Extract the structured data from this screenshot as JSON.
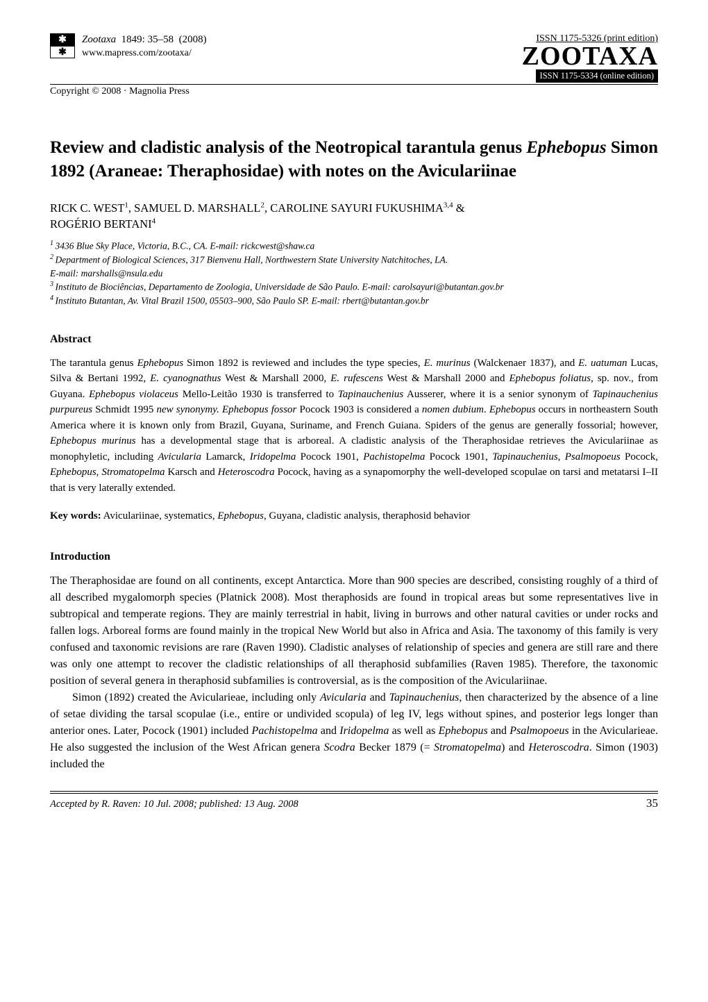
{
  "header": {
    "journal_name": "Zootaxa",
    "issue": "1849",
    "pages": "35–58",
    "year": "(2008)",
    "url": "www.mapress.com/zootaxa/",
    "copyright": "Copyright © 2008  ·  Magnolia Press",
    "issn_print": "ISSN 1175-5326  (print edition)",
    "brand": "ZOOTAXA",
    "issn_online": "ISSN 1175-5334 (online edition)"
  },
  "title": {
    "pre": "Review and cladistic analysis of the Neotropical tarantula genus ",
    "genus": "Ephebopus",
    "post": " Simon 1892 (Araneae: Theraphosidae) with notes on the Aviculariinae"
  },
  "authors": {
    "a1": "RICK C. WEST",
    "a1_sup": "1",
    "a2": "SAMUEL D. MARSHALL",
    "a2_sup": "2",
    "a3": "CAROLINE SAYURI FUKUSHIMA",
    "a3_sup": "3,4",
    "amp": " & ",
    "a4": "ROGÉRIO BERTANI",
    "a4_sup": "4"
  },
  "affiliations": {
    "l1_sup": "1 ",
    "l1": "3436 Blue Sky Place, Victoria, B.C., CA. E-mail: rickcwest@shaw.ca",
    "l2_sup": "2 ",
    "l2": "Department of Biological Sciences, 317 Bienvenu Hall, Northwestern State University Natchitoches, LA.",
    "l2b": " E-mail: marshalls@nsula.edu",
    "l3_sup": "3 ",
    "l3": "Instituto de Biociências, Departamento de Zoologia, Universidade de São Paulo. E-mail: carolsayuri@butantan.gov.br",
    "l4_sup": "4 ",
    "l4": "Instituto Butantan, Av. Vital Brazil 1500, 05503–900, São Paulo SP. E-mail: rbert@butantan.gov.br"
  },
  "abstract": {
    "heading": "Abstract",
    "s1a": "The tarantula genus ",
    "s1b": "Ephebopus",
    "s1c": " Simon 1892 is reviewed and includes the type species, ",
    "s1d": "E. murinus",
    "s1e": " (Walckenaer 1837), and ",
    "s1f": "E. uatuman",
    "s1g": " Lucas, Silva & Bertani 1992, ",
    "s1h": "E. cyanognathus",
    "s1i": " West & Marshall 2000, ",
    "s1j": "E. rufescens",
    "s1k": " West & Marshall 2000 and ",
    "s1l": "Ephebopus foliatus",
    "s1m": ", sp. nov.,   from Guyana. ",
    "s1n": "Ephebopus violaceus",
    "s1o": " Mello-Leitão 1930 is transferred to ",
    "s1p": "Tapinauchenius",
    "s1q": " Ausserer, where it is a senior synonym of ",
    "s1r": "Tapinauchenius purpureus",
    "s1s": " Schmidt 1995 ",
    "s1t": "new synonymy. Ephebopus fossor",
    "s1u": " Pocock 1903 is considered a ",
    "s1v": "nomen dubium",
    "s1w": ". ",
    "s1x": "Ephebopus",
    "s1y": " occurs in northeastern South America where it is known only from Brazil, Guyana, Suriname, and French Guiana. Spiders of the genus are generally fossorial; however, ",
    "s1z": "Ephebopus murinus",
    "s2a": " has a developmental stage that is arboreal. A cladistic analysis of the Theraphosidae retrieves the Aviculariinae as monophyletic, including ",
    "s2b": "Avicularia",
    "s2c": " Lamarck, ",
    "s2d": "Iridopelma",
    "s2e": " Pocock 1901, ",
    "s2f": "Pachistopelma",
    "s2g": " Pocock 1901, ",
    "s2h": "Tapinauchenius",
    "s2i": ", ",
    "s2j": "Psalmopoeus",
    "s2k": " Pocock, ",
    "s2l": "Ephebopus",
    "s2m": ", ",
    "s2n": "Stromatopelma",
    "s2o": " Karsch and ",
    "s2p": "Heteroscodra",
    "s2q": " Pocock, having as a synapomorphy the well-developed scopulae on tarsi and metatarsi I–II that is very laterally extended."
  },
  "keywords": {
    "label": "Key words:",
    "k1": " Aviculariinae, systematics, ",
    "k2": "Ephebopus,",
    "k3": " Guyana, cladistic analysis, theraphosid behavior"
  },
  "introduction": {
    "heading": "Introduction",
    "p1": "The Theraphosidae are found on all continents, except Antarctica. More than 900 species are described, consisting roughly of a third of all described mygalomorph species (Platnick 2008). Most theraphosids are found in tropical areas but some representatives live in subtropical and temperate regions. They are mainly terrestrial in habit, living in burrows and other natural cavities or under rocks and fallen logs. Arboreal forms are found mainly in the tropical New World but also in Africa and Asia. The taxonomy of this family is very confused and taxonomic revisions are rare (Raven 1990). Cladistic analyses of relationship of species and genera are still rare and there was only one attempt to recover the cladistic relationships of all theraphosid subfamilies (Raven 1985). Therefore, the taxonomic position of several genera in theraphosid subfamilies is controversial, as is the composition of the Aviculariinae.",
    "p2a": "Simon (1892) created the Avicularieae, including only ",
    "p2b": "Avicularia",
    "p2c": " and ",
    "p2d": "Tapinauchenius,",
    "p2e": " then characterized by the absence of a line of setae dividing the tarsal scopulae (i.e., entire or undivided scopula) of leg IV, legs without spines, and posterior legs longer than anterior ones. Later, Pocock (1901) included ",
    "p2f": "Pachistopelma",
    "p2g": " and ",
    "p2h": "Iridopelma",
    "p2i": " as well as ",
    "p2j": "Ephebopus",
    "p2k": " and ",
    "p2l": "Psalmopoeus",
    "p2m": " in the Avicularieae. He also suggested the inclusion of the West African genera ",
    "p2n": "Scodra",
    "p2o": " Becker 1879 (= ",
    "p2p": "Stromatopelma",
    "p2q": ") and ",
    "p2r": "Heteroscodra",
    "p2s": ". Simon (1903) included the"
  },
  "footer": {
    "accepted": "Accepted by R. Raven: 10 Jul. 2008; published: 13 Aug. 2008",
    "page_number": "35"
  },
  "colors": {
    "text": "#000000",
    "background": "#ffffff"
  }
}
